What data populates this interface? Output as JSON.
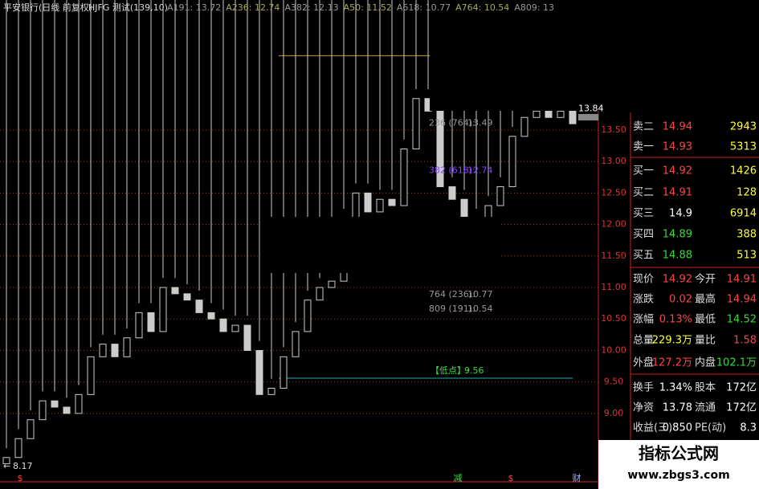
{
  "header": {
    "title": "平安银行(日线 前复权)",
    "indicator": "HJFG 测试(139,10)",
    "levels": [
      "A191: 13.72",
      "A236: 12.74",
      "A382: 12.13",
      "A50: 11.52",
      "A618: 10.77",
      "A764: 10.54",
      "A809: 13"
    ]
  },
  "price_chart": {
    "ylim": [
      7.94,
      15.31
    ],
    "yticks": [
      {
        "value": 13.5,
        "label": "13.50"
      },
      {
        "value": 13,
        "label": "13.00"
      },
      {
        "value": 12.5,
        "label": "12.50"
      },
      {
        "value": 12,
        "label": "12.00"
      },
      {
        "value": 11.5,
        "label": "11.50"
      },
      {
        "value": 11,
        "label": "11.00"
      },
      {
        "value": 10.5,
        "label": "10.50"
      },
      {
        "value": 10,
        "label": "10.00"
      },
      {
        "value": 9.5,
        "label": "9.50"
      },
      {
        "value": 9,
        "label": "9.00"
      }
    ],
    "open": [
      8.2,
      8.3,
      8.6,
      8.9,
      9.2,
      9.1,
      9.0,
      9.3,
      9.9,
      10.1,
      9.9,
      10.2,
      10.6,
      10.3,
      11.0,
      10.9,
      10.8,
      10.6,
      10.5,
      10.3,
      10.4,
      10.0,
      9.3,
      9.4,
      9.9,
      10.3,
      10.8,
      11.0,
      11.1,
      12.1,
      12.5,
      12.2,
      12.4,
      12.3,
      13.2,
      14.0,
      13.8,
      12.6,
      12.4,
      12.0,
      12.1,
      12.3,
      12.6,
      13.4,
      13.7,
      13.8,
      13.7,
      13.8
    ],
    "high": [
      8.45,
      8.75,
      9.05,
      9.35,
      9.35,
      9.25,
      9.45,
      10.05,
      10.25,
      10.25,
      10.35,
      10.75,
      10.75,
      11.15,
      11.15,
      11.05,
      10.95,
      10.75,
      10.65,
      10.55,
      10.55,
      10.15,
      9.55,
      10.05,
      10.45,
      10.95,
      11.15,
      11.25,
      12.25,
      12.65,
      12.65,
      12.55,
      12.55,
      13.35,
      14.15,
      14.15,
      13.95,
      12.75,
      12.55,
      12.25,
      12.45,
      12.75,
      13.55,
      13.85,
      13.95,
      13.95,
      13.95,
      13.95
    ],
    "low": {
      "label": "【低点】:",
      "value": 9.56
    },
    "close": [
      8.3,
      8.6,
      8.9,
      9.2,
      9.1,
      9.0,
      9.3,
      9.9,
      10.1,
      9.9,
      10.2,
      10.6,
      10.3,
      11.0,
      10.9,
      10.8,
      10.6,
      10.5,
      10.3,
      10.4,
      10.0,
      9.3,
      9.4,
      9.9,
      10.3,
      10.8,
      11.0,
      11.1,
      12.1,
      12.5,
      12.2,
      12.4,
      12.3,
      13.2,
      14.0,
      13.8,
      12.6,
      12.4,
      12.0,
      12.1,
      12.3,
      12.6,
      13.4,
      13.7,
      13.8,
      13.7,
      13.8,
      13.6
    ],
    "fib_labels": [
      {
        "label": "236 (764):",
        "value": 13.49
      },
      {
        "label": "382 (618):",
        "value": 12.74
      },
      {
        "label": "764 (236):",
        "value": 10.77
      },
      {
        "label": "809 (191):",
        "value": 10.54
      }
    ],
    "high_level": 14.68,
    "last_price": 13.84,
    "min_price": 8.17,
    "markers": [
      "$",
      "减",
      "$",
      "财"
    ]
  },
  "quote": {
    "order_book": [
      {
        "label": "卖二",
        "price": 14.94,
        "volume": 2943,
        "color": "#ff4444"
      },
      {
        "label": "卖一",
        "price": 14.93,
        "volume": 5313,
        "color": "#ff4444"
      },
      {
        "label": "买一",
        "price": 14.92,
        "volume": 1426,
        "color": "#ff4444"
      },
      {
        "label": "买二",
        "price": 14.91,
        "volume": 128,
        "color": "#ff4444"
      },
      {
        "label": "买三",
        "price": 14.9,
        "volume": 6914,
        "color": "#ffffff"
      },
      {
        "label": "买四",
        "price": 14.89,
        "volume": 388,
        "color": "#33dd33"
      },
      {
        "label": "买五",
        "price": 14.88,
        "volume": 513,
        "color": "#33dd33"
      }
    ],
    "stats": [
      [
        {
          "label": "现价",
          "value": "14.92",
          "color": "#ff4444"
        },
        {
          "label": "今开",
          "value": "14.91",
          "color": "#ff4444"
        }
      ],
      [
        {
          "label": "涨跌",
          "value": "0.02",
          "color": "#ff4444"
        },
        {
          "label": "最高",
          "value": "14.94",
          "color": "#ff4444"
        }
      ],
      [
        {
          "label": "涨幅",
          "value": "0.13%",
          "color": "#ff4444"
        },
        {
          "label": "最低",
          "value": "14.52",
          "color": "#33dd33"
        }
      ],
      [
        {
          "label": "总量",
          "value": "229.3万",
          "color": "#ffff33"
        },
        {
          "label": "量比",
          "value": "1.58",
          "color": "#ff4444"
        }
      ],
      [
        {
          "label": "外盘",
          "value": "127.2万",
          "color": "#ff4444"
        },
        {
          "label": "内盘",
          "value": "102.1万",
          "color": "#33dd33"
        }
      ],
      [
        {
          "label": "换手",
          "value": "1.34%",
          "color": "#ffffff"
        },
        {
          "label": "股本",
          "value": "172亿",
          "color": "#ffffff"
        }
      ],
      [
        {
          "label": "净资",
          "value": "13.78",
          "color": "#ffffff"
        },
        {
          "label": "流通",
          "value": "172亿",
          "color": "#ffffff"
        }
      ],
      [
        {
          "label": "收益(三)",
          "value": "0.850",
          "color": "#ffffff"
        },
        {
          "label": "PE(动)",
          "value": "8.3",
          "color": "#ffffff"
        }
      ]
    ]
  },
  "watermark": {
    "name": "指标公式网",
    "url": "www.zbgs3.com"
  }
}
